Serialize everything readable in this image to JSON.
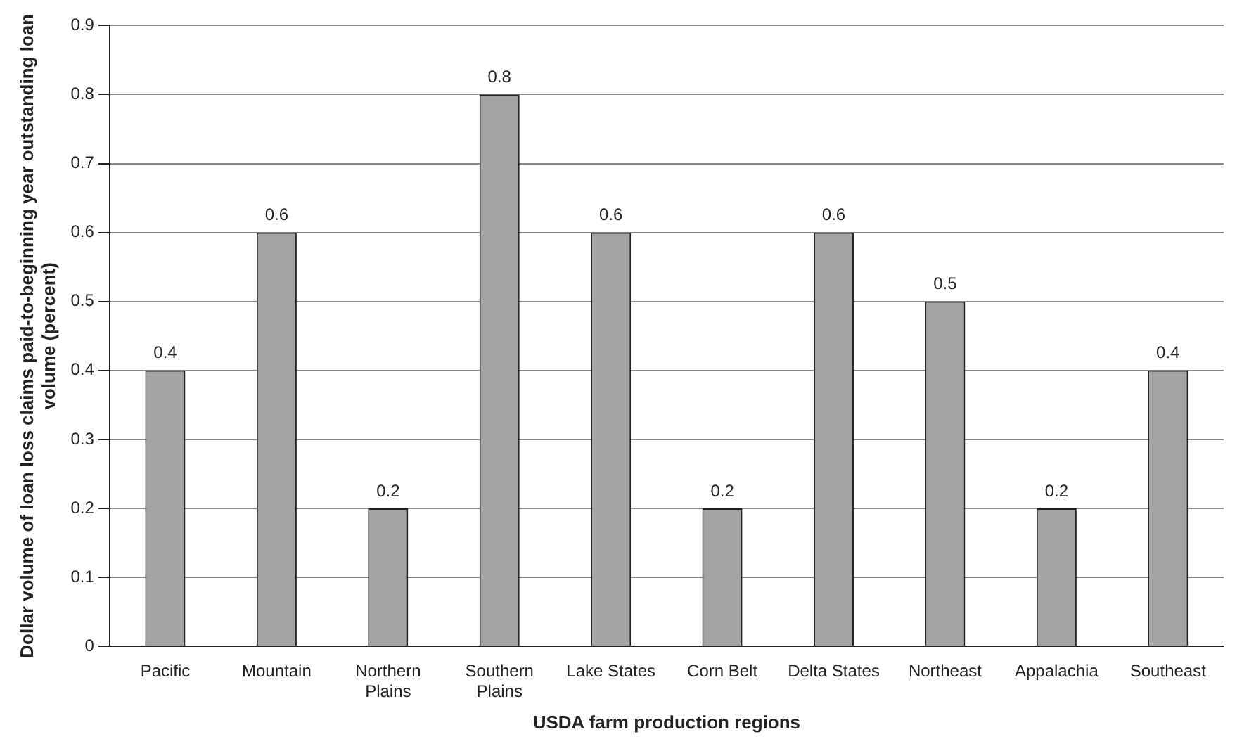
{
  "chart_data": {
    "type": "bar",
    "xlabel": "USDA farm production regions",
    "ylabel": "Dollar volume of loan loss claims paid-to-beginning year outstanding loan volume (percent)",
    "categories": [
      "Pacific",
      "Mountain",
      "Northern Plains",
      "Southern Plains",
      "Lake States",
      "Corn Belt",
      "Delta States",
      "Northeast",
      "Appalachia",
      "Southeast"
    ],
    "values": [
      0.4,
      0.6,
      0.2,
      0.8,
      0.6,
      0.2,
      0.6,
      0.5,
      0.2,
      0.4
    ],
    "color": "#a3a3a3",
    "ylim": [
      0,
      0.9
    ],
    "yticks": [
      0,
      0.1,
      0.2,
      0.3,
      0.4,
      0.5,
      0.6,
      0.7,
      0.8,
      0.9
    ],
    "grid": "y",
    "data_labels": true,
    "legend": false
  }
}
